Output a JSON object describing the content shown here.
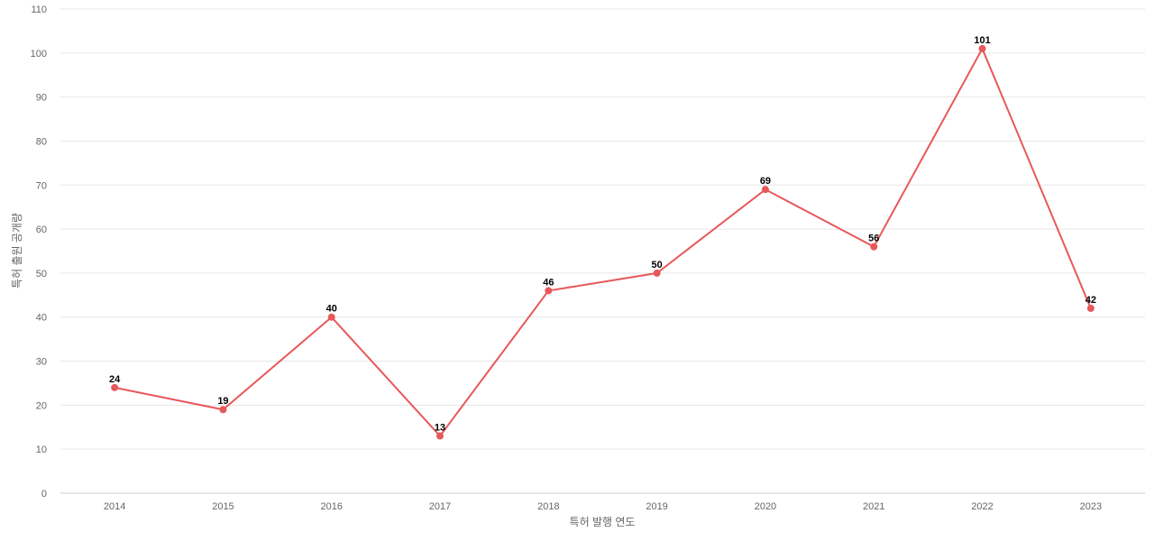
{
  "chart_data": {
    "type": "line",
    "title": "",
    "xlabel": "특허 발행 연도",
    "ylabel": "특허 출원 공개량",
    "categories": [
      "2014",
      "2015",
      "2016",
      "2017",
      "2018",
      "2019",
      "2020",
      "2021",
      "2022",
      "2023"
    ],
    "series": [
      {
        "values": [
          24,
          19,
          40,
          13,
          46,
          50,
          69,
          56,
          101,
          42
        ]
      }
    ],
    "ylim": [
      0,
      110
    ],
    "yticks": [
      0,
      10,
      20,
      30,
      40,
      50,
      60,
      70,
      80,
      90,
      100,
      110
    ],
    "grid": true,
    "legend": "none",
    "line_color": "#e8585a",
    "data_labels": true
  }
}
